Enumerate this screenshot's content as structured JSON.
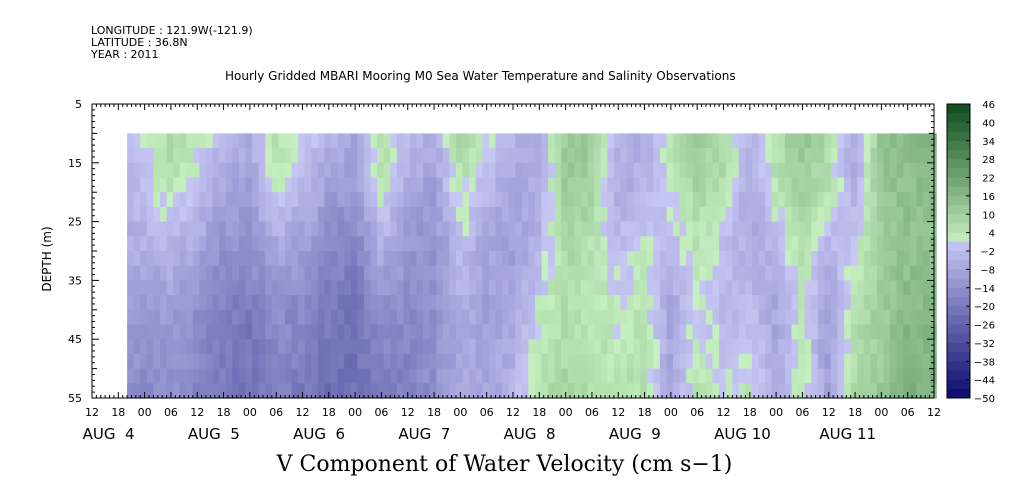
{
  "header": {
    "longitude": "LONGITUDE : 121.9W(-121.9)",
    "latitude": "LATITUDE : 36.8N",
    "year": "YEAR : 2011"
  },
  "chart_data": {
    "type": "heatmap",
    "title": "V Component of Water Velocity (cm s−1)",
    "subtitle": "Hourly Gridded MBARI Mooring M0 Sea Water Temperature and Salinity Observations",
    "ylabel": "DEPTH (m)",
    "y_ticks": [
      5,
      15,
      25,
      35,
      45,
      55
    ],
    "ylim": [
      5,
      55
    ],
    "y_inverted": true,
    "data_depth_range": [
      10,
      55
    ],
    "x_hour_ticks": [
      "12",
      "18",
      "00",
      "06",
      "12",
      "18",
      "00",
      "06",
      "12",
      "18",
      "00",
      "06",
      "12",
      "18",
      "00",
      "06",
      "12",
      "18",
      "00",
      "06",
      "12",
      "18",
      "00",
      "06",
      "12",
      "18",
      "00",
      "06",
      "12",
      "18",
      "00",
      "06",
      "12"
    ],
    "x_day_labels": [
      {
        "label": "AUG  4",
        "hour": 0
      },
      {
        "label": "AUG  5",
        "hour": 24
      },
      {
        "label": "AUG  6",
        "hour": 48
      },
      {
        "label": "AUG  7",
        "hour": 72
      },
      {
        "label": "AUG  8",
        "hour": 96
      },
      {
        "label": "AUG  9",
        "hour": 120
      },
      {
        "label": "AUG 10",
        "hour": 144
      },
      {
        "label": "AUG 11",
        "hour": 168
      }
    ],
    "x_range_hours": [
      -12,
      180
    ],
    "data_x_range_hours": [
      -4,
      180
    ],
    "colorbar_labels": [
      "46",
      "40",
      "34",
      "28",
      "22",
      "16",
      "10",
      "4",
      "−2",
      "−8",
      "−14",
      "−20",
      "−26",
      "−32",
      "−38",
      "−44",
      "−50"
    ],
    "colorbar_min": -50,
    "colorbar_max": 46,
    "colorbar_step": 3,
    "columns": [
      {
        "hour": -4,
        "values": [
          -2,
          -4,
          -6,
          -10,
          -14
        ]
      },
      {
        "hour": 0,
        "values": [
          2,
          -2,
          -6,
          -12,
          -16
        ]
      },
      {
        "hour": 6,
        "values": [
          8,
          4,
          -4,
          -10,
          -14
        ]
      },
      {
        "hour": 12,
        "values": [
          4,
          -2,
          -8,
          -14,
          -18
        ]
      },
      {
        "hour": 18,
        "values": [
          -4,
          -8,
          -14,
          -18,
          -20
        ]
      },
      {
        "hour": 24,
        "values": [
          -6,
          -10,
          -14,
          -20,
          -22
        ]
      },
      {
        "hour": 30,
        "values": [
          6,
          2,
          -8,
          -14,
          -18
        ]
      },
      {
        "hour": 36,
        "values": [
          2,
          -4,
          -10,
          -16,
          -20
        ]
      },
      {
        "hour": 42,
        "values": [
          -4,
          -10,
          -16,
          -20,
          -24
        ]
      },
      {
        "hour": 48,
        "values": [
          -8,
          -12,
          -18,
          -22,
          -22
        ]
      },
      {
        "hour": 54,
        "values": [
          6,
          4,
          -6,
          -14,
          -20
        ]
      },
      {
        "hour": 60,
        "values": [
          -2,
          -8,
          -12,
          -16,
          -18
        ]
      },
      {
        "hour": 66,
        "values": [
          -6,
          -10,
          -14,
          -14,
          -14
        ]
      },
      {
        "hour": 72,
        "values": [
          8,
          4,
          -2,
          -6,
          -8
        ]
      },
      {
        "hour": 78,
        "values": [
          4,
          -4,
          -8,
          -10,
          -8
        ]
      },
      {
        "hour": 84,
        "values": [
          -4,
          -8,
          -10,
          -8,
          -4
        ]
      },
      {
        "hour": 90,
        "values": [
          -6,
          -6,
          -4,
          2,
          6
        ]
      },
      {
        "hour": 96,
        "values": [
          10,
          12,
          8,
          6,
          8
        ]
      },
      {
        "hour": 102,
        "values": [
          12,
          8,
          4,
          4,
          6
        ]
      },
      {
        "hour": 108,
        "values": [
          -4,
          -6,
          -2,
          2,
          4
        ]
      },
      {
        "hour": 114,
        "values": [
          -6,
          -4,
          2,
          4,
          6
        ]
      },
      {
        "hour": 120,
        "values": [
          4,
          2,
          -4,
          -8,
          -8
        ]
      },
      {
        "hour": 126,
        "values": [
          10,
          8,
          4,
          2,
          4
        ]
      },
      {
        "hour": 132,
        "values": [
          8,
          6,
          -2,
          -4,
          2
        ]
      },
      {
        "hour": 138,
        "values": [
          -4,
          -8,
          -6,
          -2,
          4
        ]
      },
      {
        "hour": 144,
        "values": [
          6,
          4,
          -4,
          -8,
          -6
        ]
      },
      {
        "hour": 150,
        "values": [
          12,
          10,
          6,
          2,
          4
        ]
      },
      {
        "hour": 156,
        "values": [
          8,
          4,
          -4,
          -10,
          -10
        ]
      },
      {
        "hour": 162,
        "values": [
          -8,
          -6,
          2,
          4,
          8
        ]
      },
      {
        "hour": 168,
        "values": [
          14,
          12,
          10,
          10,
          12
        ]
      },
      {
        "hour": 174,
        "values": [
          16,
          14,
          14,
          16,
          18
        ]
      },
      {
        "hour": 180,
        "values": [
          16,
          14,
          14,
          16,
          18
        ]
      }
    ],
    "column_depths": [
      10,
      20,
      30,
      40,
      55
    ],
    "colors": {
      "neg_dark": "#0a0a6e",
      "neg_light": "#c8c8f5",
      "pos_light": "#c6f0c0",
      "pos_dark": "#0c4a1a"
    }
  }
}
